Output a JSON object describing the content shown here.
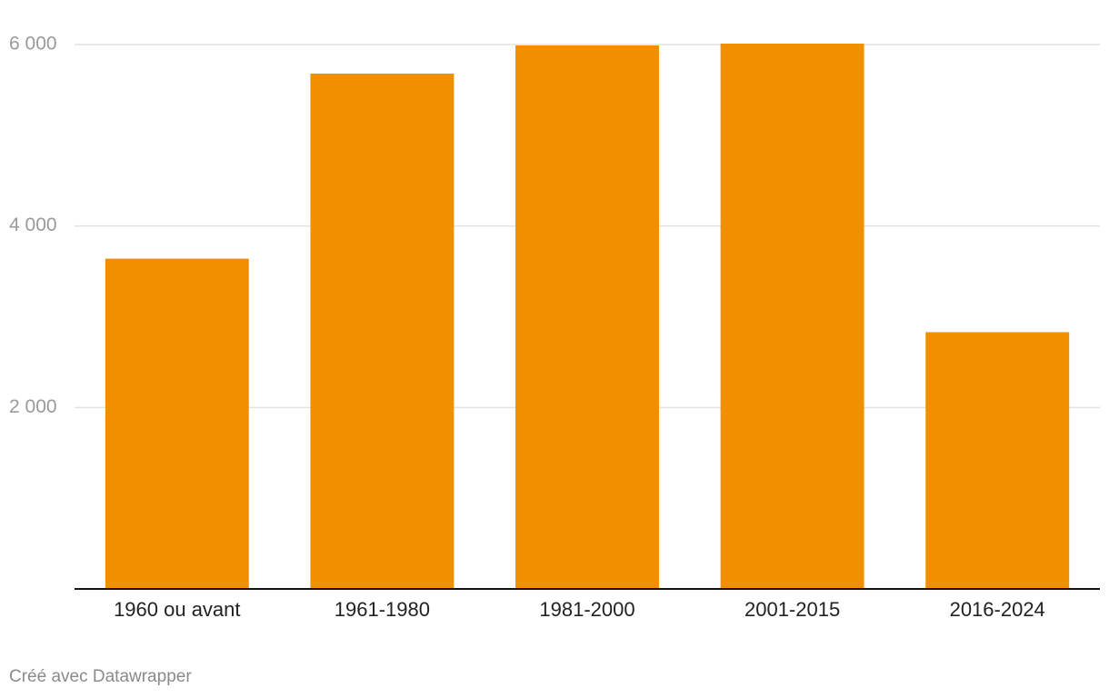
{
  "chart_data": {
    "type": "bar",
    "categories": [
      "1960 ou avant",
      "1961-1980",
      "1981-2000",
      "2001-2015",
      "2016-2024"
    ],
    "values": [
      3640,
      5680,
      5990,
      6010,
      2830
    ],
    "color": "#f09000",
    "ylim": [
      0,
      6000
    ],
    "yticks": [
      {
        "value": 2000,
        "label": "2 000"
      },
      {
        "value": 4000,
        "label": "4 000"
      },
      {
        "value": 6000,
        "label": "6 000"
      }
    ],
    "grid": true,
    "footer": "Créé avec Datawrapper"
  }
}
